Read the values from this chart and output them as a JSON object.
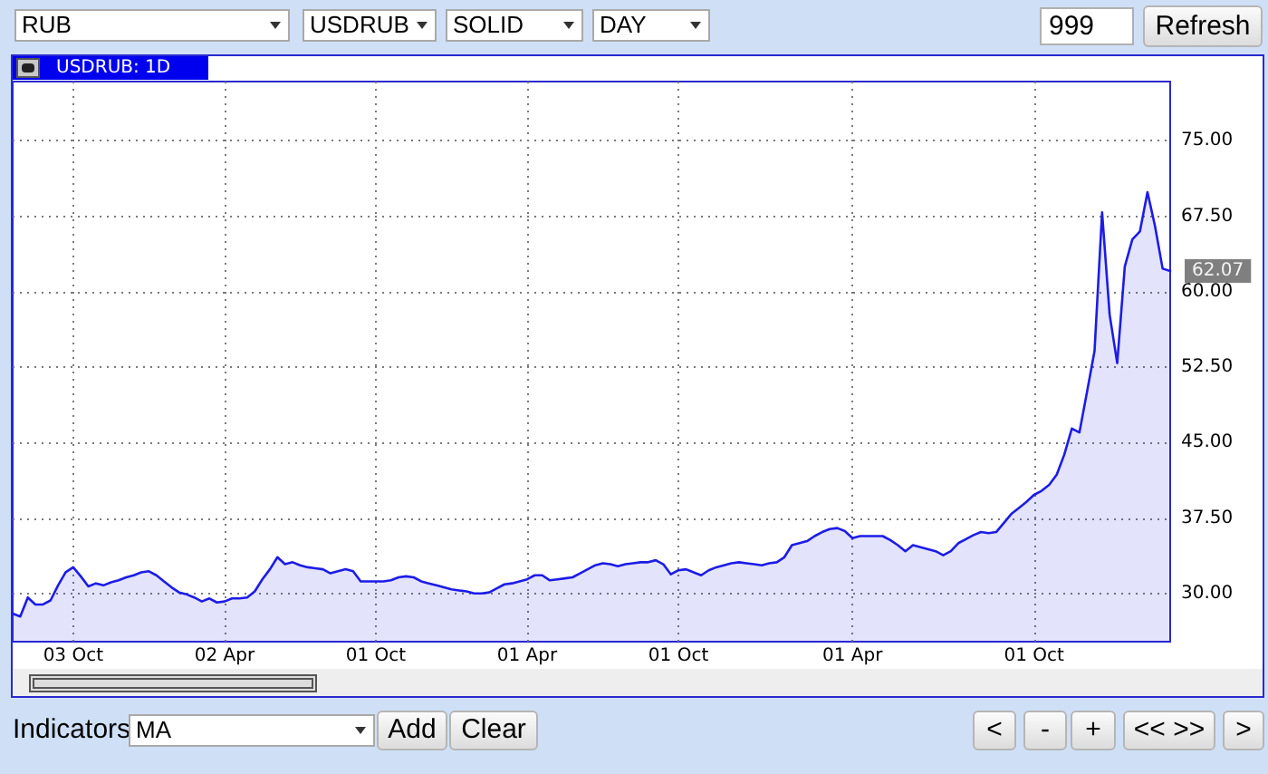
{
  "chart_data": {
    "type": "area",
    "title": "USDRUB: 1D",
    "categories": [
      null,
      null,
      null,
      null,
      null,
      null,
      null,
      null,
      "03 Oct",
      null,
      null,
      null,
      null,
      null,
      null,
      null,
      null,
      null,
      null,
      null,
      null,
      null,
      null,
      null,
      null,
      null,
      null,
      null,
      "02 Apr",
      null,
      null,
      null,
      null,
      null,
      null,
      null,
      null,
      null,
      null,
      null,
      null,
      null,
      null,
      null,
      null,
      null,
      null,
      null,
      "01 Oct",
      null,
      null,
      null,
      null,
      null,
      null,
      null,
      null,
      null,
      null,
      null,
      null,
      null,
      null,
      null,
      null,
      null,
      null,
      null,
      "01 Apr",
      null,
      null,
      null,
      null,
      null,
      null,
      null,
      null,
      null,
      null,
      null,
      null,
      null,
      null,
      null,
      null,
      null,
      null,
      null,
      "01 Oct",
      null,
      null,
      null,
      null,
      null,
      null,
      null,
      null,
      null,
      null,
      null,
      null,
      null,
      null,
      null,
      null,
      null,
      null,
      null,
      null,
      null,
      null,
      "01 Apr",
      null,
      null,
      null,
      null,
      null,
      null,
      null,
      null,
      null,
      null,
      null,
      null,
      null,
      null,
      null,
      null,
      null,
      null,
      null,
      null,
      null,
      null,
      null,
      "01 Oct",
      null,
      null,
      null,
      null,
      null,
      null,
      null,
      null,
      null,
      null,
      null,
      null,
      null,
      null,
      null,
      null,
      null,
      null
    ],
    "values": [
      28.0,
      27.7,
      29.6,
      28.9,
      28.9,
      29.3,
      30.8,
      32.1,
      32.6,
      31.7,
      30.7,
      31.0,
      30.8,
      31.1,
      31.3,
      31.6,
      31.8,
      32.1,
      32.2,
      31.8,
      31.2,
      30.6,
      30.1,
      29.9,
      29.6,
      29.2,
      29.5,
      29.1,
      29.2,
      29.5,
      29.5,
      29.6,
      30.2,
      31.4,
      32.4,
      33.6,
      32.9,
      33.1,
      32.8,
      32.6,
      32.5,
      32.4,
      32.0,
      32.2,
      32.4,
      32.2,
      31.2,
      31.2,
      31.2,
      31.2,
      31.3,
      31.6,
      31.7,
      31.6,
      31.2,
      31.0,
      30.8,
      30.6,
      30.4,
      30.3,
      30.2,
      30.0,
      30.0,
      30.1,
      30.5,
      30.9,
      31.0,
      31.2,
      31.4,
      31.8,
      31.8,
      31.3,
      31.4,
      31.5,
      31.6,
      32.0,
      32.4,
      32.8,
      33.0,
      32.9,
      32.7,
      32.9,
      33.0,
      33.1,
      33.1,
      33.3,
      32.9,
      31.9,
      32.3,
      32.4,
      32.1,
      31.8,
      32.3,
      32.6,
      32.8,
      33.0,
      33.1,
      33.0,
      32.9,
      32.8,
      33.0,
      33.1,
      33.6,
      34.8,
      35.0,
      35.2,
      35.7,
      36.1,
      36.4,
      36.5,
      36.2,
      35.5,
      35.7,
      35.7,
      35.7,
      35.7,
      35.3,
      34.8,
      34.2,
      34.8,
      34.6,
      34.4,
      34.2,
      33.8,
      34.2,
      35.0,
      35.4,
      35.8,
      36.1,
      36.0,
      36.1,
      37.0,
      37.9,
      38.5,
      39.1,
      39.8,
      40.2,
      40.8,
      41.8,
      43.8,
      46.4,
      46.0,
      50.0,
      54.1,
      67.9,
      57.7,
      52.9,
      62.5,
      65.2,
      66.0,
      69.9,
      66.5,
      62.3,
      62.07
    ],
    "value_labels": [
      null,
      null,
      null,
      null,
      null,
      null,
      null,
      null,
      null,
      null,
      null,
      null,
      null,
      null,
      null,
      null,
      null,
      null,
      null,
      null,
      null,
      null,
      null,
      null,
      null,
      null,
      null,
      null,
      null,
      null,
      null,
      null,
      null,
      null,
      null,
      null,
      null,
      null,
      null,
      null,
      null,
      null,
      null,
      null,
      null,
      null,
      null,
      null,
      null,
      null,
      null,
      null,
      null,
      null,
      null,
      null,
      null,
      null,
      null,
      null,
      null,
      null,
      null,
      null,
      null,
      null,
      null,
      null,
      null,
      null,
      null,
      null,
      null,
      null,
      null,
      null,
      null,
      null,
      null,
      null,
      null,
      null,
      null,
      null,
      null,
      null,
      null,
      null,
      null,
      null,
      null,
      null,
      null,
      null,
      null,
      null,
      null,
      null,
      null,
      null,
      null,
      null,
      null,
      null,
      null,
      null,
      null,
      null,
      null,
      null,
      null,
      null,
      null,
      null,
      null,
      null,
      null,
      null,
      null,
      null,
      null,
      null,
      null,
      null,
      null,
      null,
      null,
      null,
      null,
      null,
      null,
      null,
      null,
      null,
      null,
      null,
      null,
      null,
      null,
      null,
      null,
      null,
      null,
      null,
      null,
      null,
      null,
      null,
      null,
      null,
      null,
      null,
      null,
      "62.07"
    ],
    "color": "#1c1ce6",
    "ylim": [
      25.2,
      80.9
    ],
    "yticks": [
      {
        "value": 30,
        "label": "30.00"
      },
      {
        "value": 37.5,
        "label": "37.50"
      },
      {
        "value": 45,
        "label": "45.00"
      },
      {
        "value": 52.5,
        "label": "52.50"
      },
      {
        "value": 60,
        "label": "60.00"
      },
      {
        "value": 67.5,
        "label": "67.50"
      },
      {
        "value": 75,
        "label": "75.00"
      }
    ],
    "grid": true,
    "annotations": [
      "RUB",
      "USDRUB",
      "SOLID",
      "DAY",
      "999",
      "Refresh",
      "Indicators",
      "MA",
      "Add",
      "Clear",
      "<",
      "-",
      "+",
      "<< >>",
      ">"
    ]
  }
}
